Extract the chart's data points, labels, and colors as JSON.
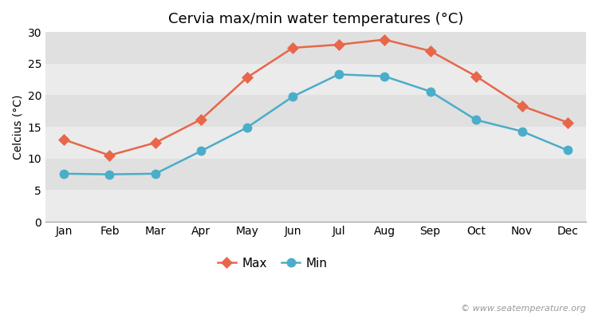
{
  "title": "Cervia max/min water temperatures (°C)",
  "months": [
    "Jan",
    "Feb",
    "Mar",
    "Apr",
    "May",
    "Jun",
    "Jul",
    "Aug",
    "Sep",
    "Oct",
    "Nov",
    "Dec"
  ],
  "max_values": [
    13.0,
    10.5,
    12.5,
    16.2,
    22.8,
    27.5,
    28.0,
    28.8,
    27.0,
    23.0,
    18.3,
    15.7
  ],
  "min_values": [
    7.6,
    7.5,
    7.6,
    11.2,
    14.9,
    19.8,
    23.3,
    23.0,
    20.6,
    16.1,
    14.3,
    11.3
  ],
  "max_color": "#e8664a",
  "min_color": "#4aadc9",
  "figure_bg": "#ffffff",
  "plot_bg_light": "#f0f0f0",
  "plot_bg_dark": "#e0e0e0",
  "ylabel": "Celcius (°C)",
  "ylim": [
    0,
    30
  ],
  "yticks": [
    0,
    5,
    10,
    15,
    20,
    25,
    30
  ],
  "legend_max": "Max",
  "legend_min": "Min",
  "watermark": "© www.seatemperature.org",
  "title_fontsize": 13,
  "axis_fontsize": 10,
  "tick_fontsize": 10,
  "band_colors": [
    "#ebebeb",
    "#e0e0e0"
  ]
}
